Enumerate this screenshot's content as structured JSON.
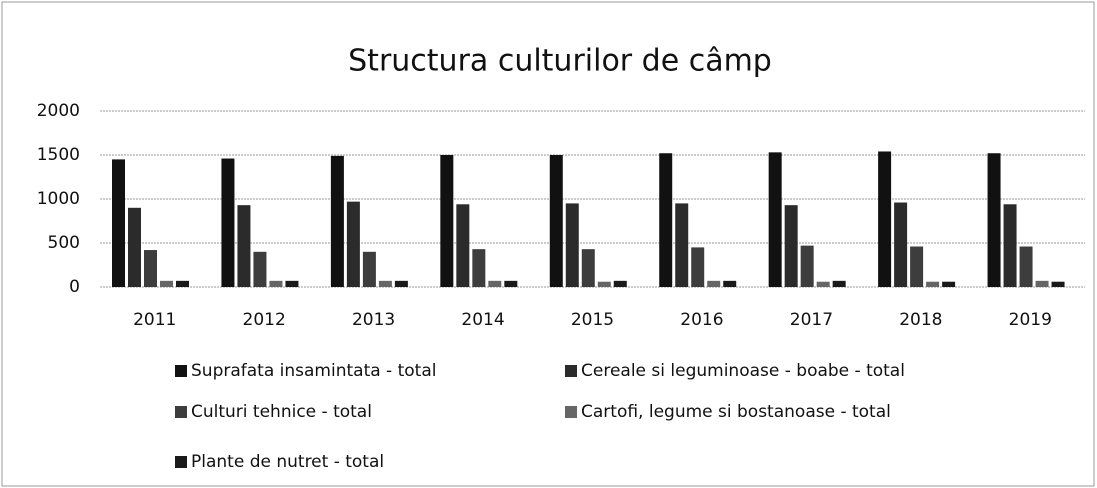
{
  "chart_data": {
    "type": "bar",
    "title": "Structura culturilor de câmp",
    "categories": [
      "2011",
      "2012",
      "2013",
      "2014",
      "2015",
      "2016",
      "2017",
      "2018",
      "2019"
    ],
    "series": [
      {
        "name": "Suprafata insamintata - total",
        "color": "#111111",
        "values": [
          1450,
          1460,
          1490,
          1500,
          1500,
          1520,
          1530,
          1540,
          1520
        ]
      },
      {
        "name": "Cereale si leguminoase - boabe - total",
        "color": "#2b2b2b",
        "values": [
          900,
          930,
          970,
          940,
          950,
          950,
          930,
          960,
          940
        ]
      },
      {
        "name": "Culturi tehnice - total",
        "color": "#3d3d3d",
        "values": [
          420,
          400,
          400,
          430,
          430,
          450,
          470,
          460,
          460
        ]
      },
      {
        "name": "Cartofi, legume si bostanoase - total",
        "color": "#666666",
        "values": [
          70,
          70,
          70,
          70,
          60,
          70,
          60,
          60,
          70
        ]
      },
      {
        "name": "Plante de nutret - total",
        "color": "#1a1a1a",
        "values": [
          70,
          70,
          70,
          70,
          70,
          70,
          70,
          60,
          60
        ]
      }
    ],
    "ylim": [
      0,
      2000
    ],
    "yticks": [
      0,
      500,
      1000,
      1500,
      2000
    ],
    "grid": true
  }
}
